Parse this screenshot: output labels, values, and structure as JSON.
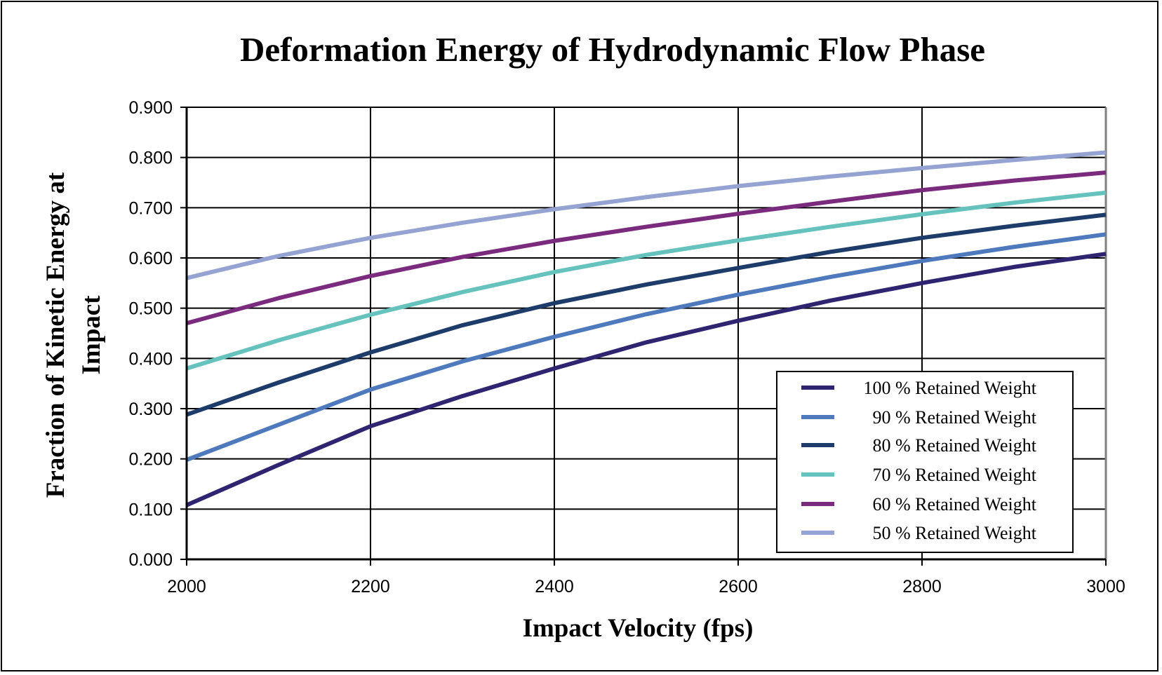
{
  "chart_data": {
    "type": "line",
    "title": "Deformation Energy of Hydrodynamic Flow Phase",
    "xlabel": "Impact Velocity (fps)",
    "ylabel_lines": [
      "Fraction of Kinetic Energy at",
      "Impact"
    ],
    "xlim": [
      2000,
      3000
    ],
    "ylim": [
      0.0,
      0.9
    ],
    "x_ticks": [
      2000,
      2200,
      2400,
      2600,
      2800,
      3000
    ],
    "x_tick_labels": [
      "2000",
      "2200",
      "2400",
      "2600",
      "2800",
      "3000"
    ],
    "y_ticks": [
      0.0,
      0.1,
      0.2,
      0.3,
      0.4,
      0.5,
      0.6,
      0.7,
      0.8,
      0.9
    ],
    "y_tick_labels": [
      "0.000",
      "0.100",
      "0.200",
      "0.300",
      "0.400",
      "0.500",
      "0.600",
      "0.700",
      "0.800",
      "0.900"
    ],
    "grid": true,
    "legend_position": "bottom-right",
    "x": [
      2000,
      2100,
      2200,
      2300,
      2400,
      2500,
      2600,
      2700,
      2800,
      2900,
      3000
    ],
    "series": [
      {
        "name": "100 % Retained Weight",
        "color": "#2e2470",
        "values": [
          0.108,
          0.188,
          0.265,
          0.325,
          0.38,
          0.432,
          0.475,
          0.515,
          0.55,
          0.582,
          0.608
        ]
      },
      {
        "name": "90 % Retained Weight",
        "color": "#4e79bd",
        "values": [
          0.198,
          0.268,
          0.338,
          0.394,
          0.443,
          0.488,
          0.527,
          0.562,
          0.594,
          0.622,
          0.647
        ]
      },
      {
        "name": "80 % Retained Weight",
        "color": "#1d3c6a",
        "values": [
          0.288,
          0.352,
          0.412,
          0.466,
          0.51,
          0.547,
          0.58,
          0.612,
          0.64,
          0.664,
          0.686
        ]
      },
      {
        "name": "70 % Retained Weight",
        "color": "#66c2bd",
        "values": [
          0.38,
          0.436,
          0.487,
          0.532,
          0.572,
          0.606,
          0.635,
          0.662,
          0.687,
          0.71,
          0.73
        ]
      },
      {
        "name": "60 % Retained Weight",
        "color": "#7b2b7e",
        "values": [
          0.47,
          0.52,
          0.564,
          0.602,
          0.634,
          0.662,
          0.688,
          0.712,
          0.735,
          0.754,
          0.77
        ]
      },
      {
        "name": "50 % Retained Weight",
        "color": "#94a3d2",
        "values": [
          0.56,
          0.604,
          0.64,
          0.67,
          0.697,
          0.721,
          0.743,
          0.762,
          0.779,
          0.795,
          0.81
        ]
      }
    ]
  }
}
